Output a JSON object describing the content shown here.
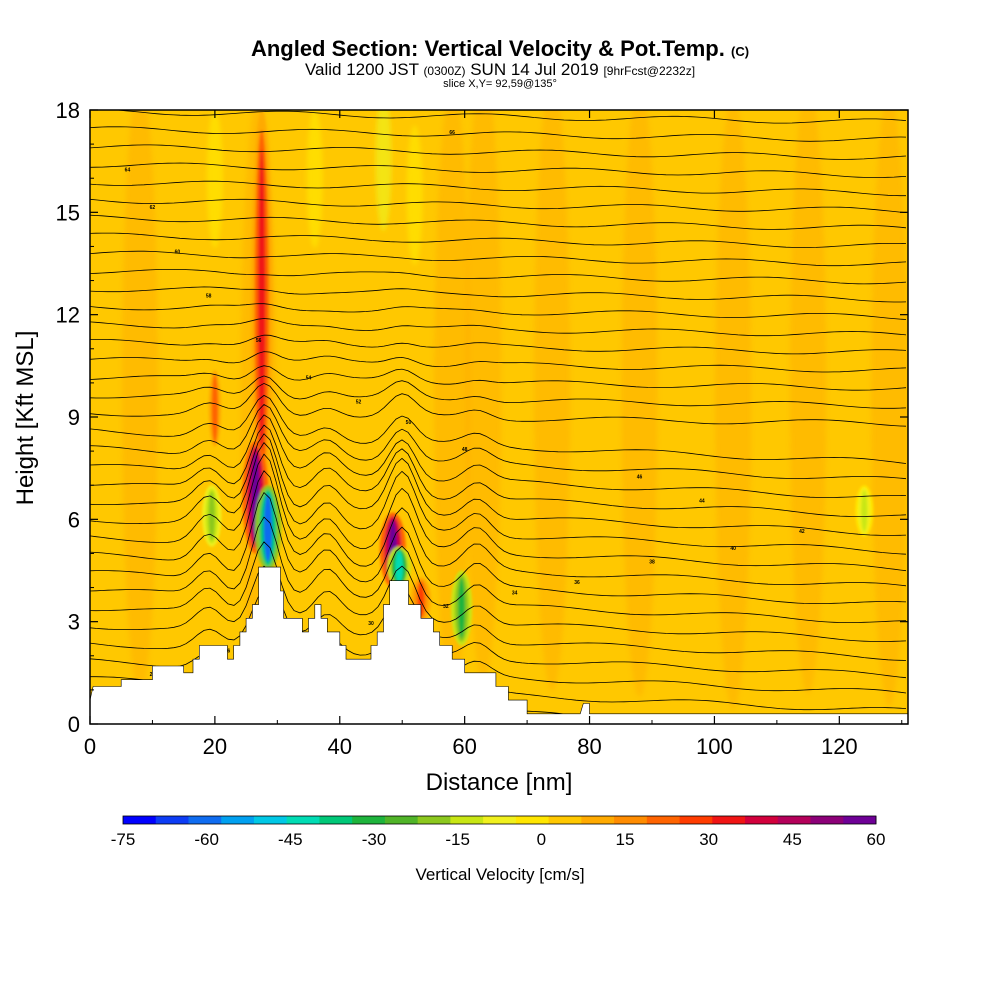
{
  "title": {
    "main": "Angled Section: Vertical Velocity & Pot.Temp.",
    "copyright": "(C)",
    "valid_prefix": "Valid 1200 JST",
    "zulu": "(0300Z)",
    "date": "SUN 14 Jul 2019",
    "forecast": "[9hrFcst@2232z]",
    "slice": "slice X,Y= 92,59@135°"
  },
  "chart_data": {
    "type": "heatmap",
    "title": "Angled Section: Vertical Velocity & Pot.Temp.",
    "xlabel": "Distance [nm]",
    "ylabel": "Height [Kft MSL]",
    "xlim": [
      0,
      131
    ],
    "ylim": [
      0,
      18
    ],
    "x_ticks": [
      "0",
      "20",
      "40",
      "60",
      "80",
      "100",
      "120"
    ],
    "y_ticks": [
      "0",
      "3",
      "6",
      "9",
      "12",
      "15",
      "18"
    ],
    "colorbar": {
      "label": "Vertical Velocity [cm/s]",
      "ticks": [
        "-75",
        "-60",
        "-45",
        "-30",
        "-15",
        "0",
        "15",
        "30",
        "45",
        "60"
      ],
      "colors": [
        "#0000ff",
        "#0d3cf5",
        "#0f6cf0",
        "#00a0f0",
        "#00c8e6",
        "#00dcb4",
        "#00c878",
        "#1eb43c",
        "#50b428",
        "#8cc81e",
        "#c8e614",
        "#f0f01e",
        "#ffe600",
        "#ffc800",
        "#ffaa00",
        "#ff8c00",
        "#ff6400",
        "#ff3c00",
        "#f01414",
        "#d2003c",
        "#b4005a",
        "#8c0078",
        "#6e0096"
      ]
    },
    "background_value_cm_s": 5,
    "updrafts": [
      {
        "x": 27.5,
        "y_from": 6.5,
        "y_to": 18,
        "peak_cm_s": 35
      },
      {
        "x": 20,
        "y_from": 8,
        "y_to": 10.5,
        "peak_cm_s": 20
      },
      {
        "x": 26.5,
        "y_from": 5,
        "y_to": 8.3,
        "peak_cm_s": 60
      },
      {
        "x": 48.5,
        "y_from": 4,
        "y_to": 6.2,
        "peak_cm_s": 60
      },
      {
        "x": 53,
        "y_from": 3,
        "y_to": 4.3,
        "peak_cm_s": 25
      }
    ],
    "downdrafts": [
      {
        "x": 28.5,
        "y_from": 4.5,
        "y_to": 7,
        "peak_cm_s": -60
      },
      {
        "x": 49.5,
        "y_from": 4,
        "y_to": 5.2,
        "peak_cm_s": -45
      },
      {
        "x": 59.5,
        "y_from": 2.3,
        "y_to": 4.5,
        "peak_cm_s": -30
      },
      {
        "x": 19.5,
        "y_from": 5.2,
        "y_to": 7,
        "peak_cm_s": -20
      },
      {
        "x": 124,
        "y_from": 5.5,
        "y_to": 7,
        "peak_cm_s": -12
      }
    ],
    "terrain": [
      [
        0,
        0.7
      ],
      [
        0.5,
        1.1
      ],
      [
        5,
        1.1
      ],
      [
        5,
        1.3
      ],
      [
        10,
        1.3
      ],
      [
        10,
        1.7
      ],
      [
        15,
        1.7
      ],
      [
        15,
        1.5
      ],
      [
        16.5,
        1.5
      ],
      [
        16.5,
        1.9
      ],
      [
        17.5,
        1.9
      ],
      [
        17.5,
        2.3
      ],
      [
        22,
        2.3
      ],
      [
        22,
        1.9
      ],
      [
        23,
        1.9
      ],
      [
        23,
        2.3
      ],
      [
        24,
        2.3
      ],
      [
        24,
        2.7
      ],
      [
        25,
        2.7
      ],
      [
        25,
        3.1
      ],
      [
        26,
        3.1
      ],
      [
        26,
        3.5
      ],
      [
        27,
        3.5
      ],
      [
        27,
        4.6
      ],
      [
        30.5,
        4.6
      ],
      [
        30.5,
        3.9
      ],
      [
        31,
        3.9
      ],
      [
        31,
        3.1
      ],
      [
        34,
        3.1
      ],
      [
        34,
        2.7
      ],
      [
        35,
        2.7
      ],
      [
        35,
        3.1
      ],
      [
        36,
        3.1
      ],
      [
        36,
        3.5
      ],
      [
        37,
        3.5
      ],
      [
        37,
        3.1
      ],
      [
        38,
        3.1
      ],
      [
        38,
        2.7
      ],
      [
        40,
        2.7
      ],
      [
        40,
        2.3
      ],
      [
        41,
        2.3
      ],
      [
        41,
        1.9
      ],
      [
        45,
        1.9
      ],
      [
        45,
        2.3
      ],
      [
        46,
        2.3
      ],
      [
        46,
        2.7
      ],
      [
        47,
        2.7
      ],
      [
        47,
        3.5
      ],
      [
        48,
        3.5
      ],
      [
        48,
        4.2
      ],
      [
        51,
        4.2
      ],
      [
        51,
        3.5
      ],
      [
        53,
        3.5
      ],
      [
        53,
        3.1
      ],
      [
        55,
        3.1
      ],
      [
        55,
        2.7
      ],
      [
        56,
        2.7
      ],
      [
        56,
        2.3
      ],
      [
        58,
        2.3
      ],
      [
        58,
        1.9
      ],
      [
        60,
        1.9
      ],
      [
        60,
        1.5
      ],
      [
        65,
        1.5
      ],
      [
        65,
        1.1
      ],
      [
        67,
        1.1
      ],
      [
        67,
        0.7
      ],
      [
        70,
        0.7
      ],
      [
        70,
        0.3
      ],
      [
        78.5,
        0.3
      ],
      [
        79,
        0.6
      ],
      [
        80,
        0.6
      ],
      [
        80,
        0.3
      ],
      [
        131,
        0.3
      ],
      [
        131,
        0
      ]
    ],
    "isentropes_K": [
      "25",
      "26",
      "28",
      "30",
      "32",
      "34",
      "36",
      "38",
      "40",
      "42",
      "44",
      "46",
      "48",
      "50",
      "52",
      "54",
      "56",
      "58",
      "60",
      "62",
      "64",
      "66"
    ]
  }
}
